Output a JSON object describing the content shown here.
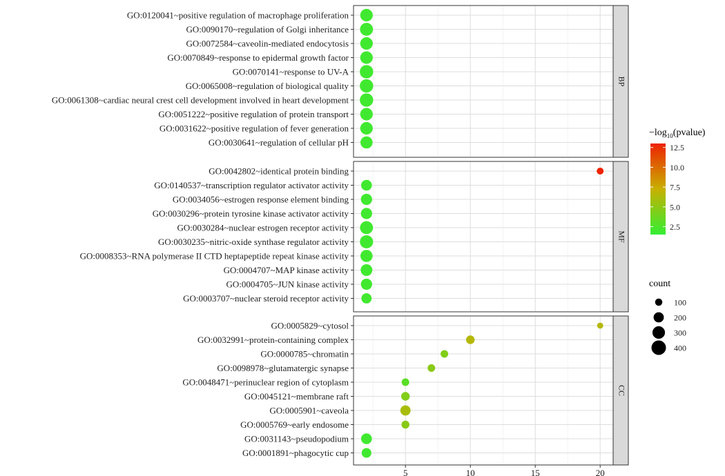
{
  "chart_data": {
    "type": "scatter",
    "x_ticks": [
      5,
      10,
      15,
      20
    ],
    "xlim": [
      1,
      21
    ],
    "facets": [
      {
        "label": "BP",
        "rows": [
          {
            "term": "GO:0120041~positive regulation of macrophage proliferation",
            "x": 2,
            "pvalue_log": 2.0,
            "count": 300
          },
          {
            "term": "GO:0090170~regulation of Golgi inheritance",
            "x": 2,
            "pvalue_log": 2.0,
            "count": 320
          },
          {
            "term": "GO:0072584~caveolin-mediated endocytosis",
            "x": 2,
            "pvalue_log": 2.0,
            "count": 300
          },
          {
            "term": "GO:0070849~response to epidermal growth factor",
            "x": 2,
            "pvalue_log": 2.0,
            "count": 300
          },
          {
            "term": "GO:0070141~response to UV-A",
            "x": 2,
            "pvalue_log": 2.0,
            "count": 340
          },
          {
            "term": "GO:0065008~regulation of biological quality",
            "x": 2,
            "pvalue_log": 2.0,
            "count": 340
          },
          {
            "term": "GO:0061308~cardiac neural crest cell development involved in heart development",
            "x": 2,
            "pvalue_log": 2.0,
            "count": 340
          },
          {
            "term": "GO:0051222~positive regulation of protein transport",
            "x": 2,
            "pvalue_log": 2.0,
            "count": 300
          },
          {
            "term": "GO:0031622~positive regulation of fever generation",
            "x": 2,
            "pvalue_log": 2.0,
            "count": 300
          },
          {
            "term": "GO:0030641~regulation of cellular pH",
            "x": 2,
            "pvalue_log": 2.0,
            "count": 280
          }
        ]
      },
      {
        "label": "MF",
        "rows": [
          {
            "term": "GO:0042802~identical protein binding",
            "x": 20,
            "pvalue_log": 13.0,
            "count": 90
          },
          {
            "term": "GO:0140537~transcription regulator activator activity",
            "x": 2,
            "pvalue_log": 2.0,
            "count": 220
          },
          {
            "term": "GO:0034056~estrogen response element binding",
            "x": 2,
            "pvalue_log": 2.0,
            "count": 240
          },
          {
            "term": "GO:0030296~protein tyrosine kinase activator activity",
            "x": 2,
            "pvalue_log": 2.0,
            "count": 240
          },
          {
            "term": "GO:0030284~nuclear estrogen receptor activity",
            "x": 2,
            "pvalue_log": 2.0,
            "count": 320
          },
          {
            "term": "GO:0030235~nitric-oxide synthase regulator activity",
            "x": 2,
            "pvalue_log": 2.0,
            "count": 330
          },
          {
            "term": "GO:0008353~RNA polymerase II CTD heptapeptide repeat kinase activity",
            "x": 2,
            "pvalue_log": 2.0,
            "count": 280
          },
          {
            "term": "GO:0004707~MAP kinase activity",
            "x": 2,
            "pvalue_log": 2.0,
            "count": 260
          },
          {
            "term": "GO:0004705~JUN kinase activity",
            "x": 2,
            "pvalue_log": 2.0,
            "count": 240
          },
          {
            "term": "GO:0003707~nuclear steroid receptor activity",
            "x": 2,
            "pvalue_log": 2.0,
            "count": 200
          }
        ]
      },
      {
        "label": "CC",
        "rows": [
          {
            "term": "GO:0005829~cytosol",
            "x": 20,
            "pvalue_log": 6.5,
            "count": 70
          },
          {
            "term": "GO:0032991~protein-containing complex",
            "x": 10,
            "pvalue_log": 6.5,
            "count": 140
          },
          {
            "term": "GO:0000785~chromatin",
            "x": 8,
            "pvalue_log": 4.5,
            "count": 110
          },
          {
            "term": "GO:0098978~glutamatergic synapse",
            "x": 7,
            "pvalue_log": 4.8,
            "count": 110
          },
          {
            "term": "GO:0048471~perinuclear region of cytoplasm",
            "x": 5,
            "pvalue_log": 3.0,
            "count": 110
          },
          {
            "term": "GO:0045121~membrane raft",
            "x": 5,
            "pvalue_log": 4.5,
            "count": 140
          },
          {
            "term": "GO:0005901~caveola",
            "x": 5,
            "pvalue_log": 6.0,
            "count": 200
          },
          {
            "term": "GO:0005769~early endosome",
            "x": 5,
            "pvalue_log": 4.8,
            "count": 120
          },
          {
            "term": "GO:0031143~pseudopodium",
            "x": 2,
            "pvalue_log": 2.0,
            "count": 220
          },
          {
            "term": "GO:0001891~phagocytic cup",
            "x": 2,
            "pvalue_log": 2.0,
            "count": 180
          }
        ]
      }
    ],
    "color_legend": {
      "title_prefix": "−log",
      "title_sub": "10",
      "title_suffix": "(pvalue)",
      "ticks": [
        "12.5",
        "10.0",
        "7.5",
        "5.0",
        "2.5"
      ],
      "tick_values": [
        12.5,
        10.0,
        7.5,
        5.0,
        2.5
      ],
      "range": [
        1.5,
        13.0
      ],
      "colors": [
        "#33ee33",
        "#c8b000",
        "#ee2200"
      ]
    },
    "size_legend": {
      "title": "count",
      "labels": [
        "100",
        "200",
        "300",
        "400"
      ],
      "values": [
        100,
        200,
        300,
        400
      ]
    },
    "grid": true,
    "legend_position": "right"
  }
}
